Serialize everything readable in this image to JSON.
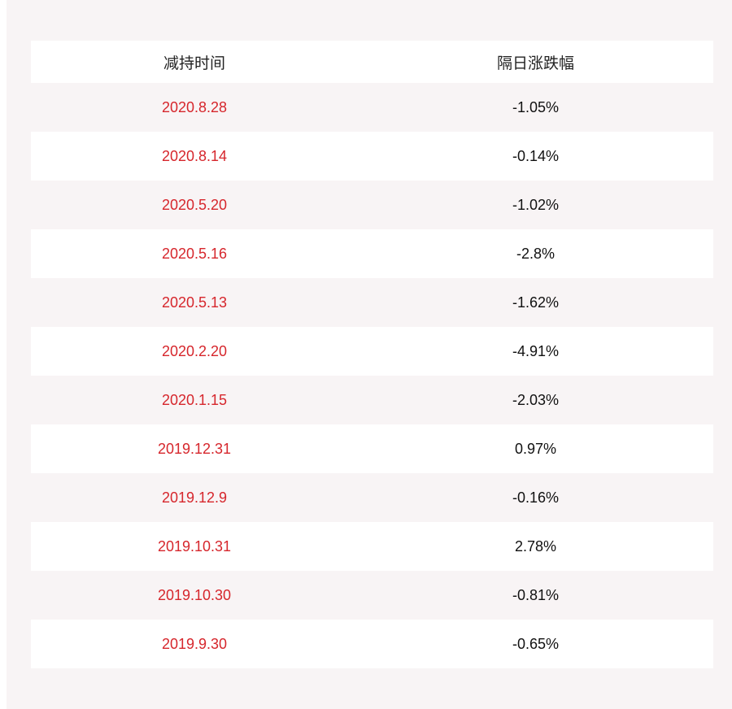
{
  "table": {
    "headers": [
      "减持时间",
      "隔日涨跌幅"
    ],
    "rows": [
      [
        "2020.8.28",
        "-1.05%"
      ],
      [
        "2020.8.14",
        "-0.14%"
      ],
      [
        "2020.5.20",
        "-1.02%"
      ],
      [
        "2020.5.16",
        "-2.8%"
      ],
      [
        "2020.5.13",
        "-1.62%"
      ],
      [
        "2020.2.20",
        "-4.91%"
      ],
      [
        "2020.1.15",
        "-2.03%"
      ],
      [
        "2019.12.31",
        "0.97%"
      ],
      [
        "2019.12.9",
        "-0.16%"
      ],
      [
        "2019.10.31",
        "2.78%"
      ],
      [
        "2019.10.30",
        "-0.81%"
      ],
      [
        "2019.9.30",
        "-0.65%"
      ]
    ]
  },
  "colors": {
    "date_text": "#d6262c",
    "panel_bg": "#f8f4f5",
    "row_white": "#ffffff"
  }
}
